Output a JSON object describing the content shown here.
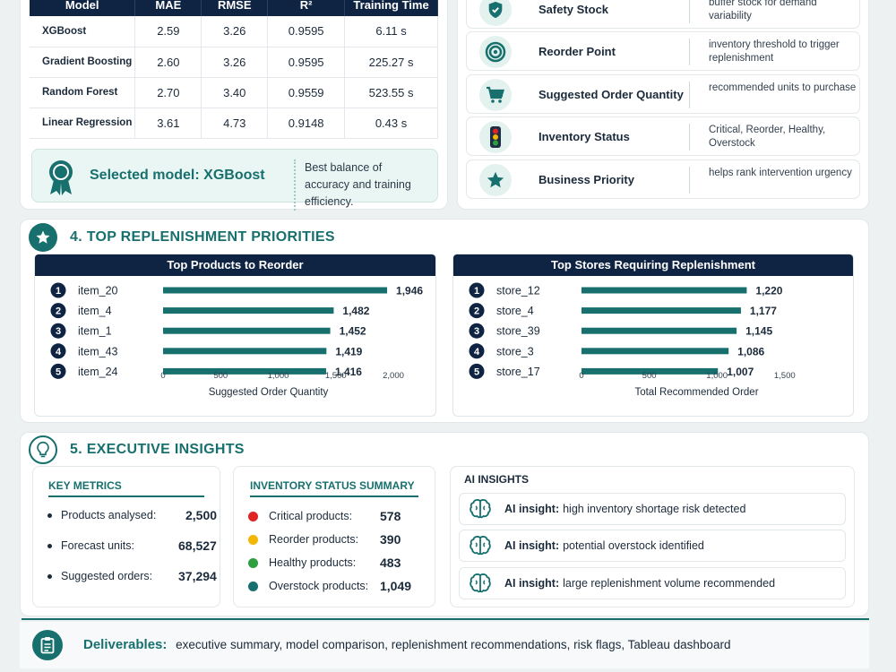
{
  "model_table": {
    "headers": [
      "Model",
      "MAE",
      "RMSE",
      "R²",
      "Training Time"
    ],
    "rows": [
      [
        "XGBoost",
        "2.59",
        "3.26",
        "0.9595",
        "6.11 s"
      ],
      [
        "Gradient Boosting",
        "2.60",
        "3.26",
        "0.9595",
        "225.27 s"
      ],
      [
        "Random Forest",
        "2.70",
        "3.40",
        "0.9559",
        "523.55 s"
      ],
      [
        "Linear Regression",
        "3.61",
        "4.73",
        "0.9148",
        "0.43 s"
      ]
    ]
  },
  "selected": {
    "title": "Selected model: XGBoost",
    "desc": "Best balance of accuracy and training efficiency."
  },
  "params": [
    {
      "icon": "shield-icon",
      "name": "Safety Stock",
      "desc": "buffer stock for demand variability"
    },
    {
      "icon": "target-icon",
      "name": "Reorder Point",
      "desc": "inventory threshold to trigger replenishment"
    },
    {
      "icon": "cart-icon",
      "name": "Suggested Order Quantity",
      "desc": "recommended units to purchase"
    },
    {
      "icon": "traffic-light-icon",
      "name": "Inventory Status",
      "desc": "Critical, Reorder, Healthy, Overstock"
    },
    {
      "icon": "star-icon",
      "name": "Business Priority",
      "desc": "helps rank intervention urgency"
    }
  ],
  "section4": {
    "title": "4. TOP REPLENISHMENT PRIORITIES"
  },
  "section5": {
    "title": "5. EXECUTIVE INSIGHTS"
  },
  "chart_data": [
    {
      "type": "bar",
      "title": "Top Products to Reorder",
      "categories": [
        "item_20",
        "item_4",
        "item_1",
        "item_43",
        "item_24"
      ],
      "values": [
        1946,
        1482,
        1452,
        1419,
        1416
      ],
      "value_labels": [
        "1,946",
        "1,482",
        "1,452",
        "1,419",
        "1,416"
      ],
      "xlabel": "Suggested Order Quantity",
      "xlim": [
        0,
        2000
      ],
      "ticks": [
        "0",
        "500",
        "1,000",
        "1,500",
        "2,000"
      ],
      "color": "#17706e"
    },
    {
      "type": "bar",
      "title": "Top Stores Requiring Replenishment",
      "categories": [
        "store_12",
        "store_4",
        "store_39",
        "store_3",
        "store_17"
      ],
      "values": [
        1220,
        1177,
        1145,
        1086,
        1007
      ],
      "value_labels": [
        "1,220",
        "1,177",
        "1,145",
        "1,086",
        "1,007"
      ],
      "xlabel": "Total Recommended Order",
      "xlim": [
        0,
        1700
      ],
      "ticks": [
        "0",
        "500",
        "1,000",
        "1,500"
      ],
      "color": "#17706e"
    }
  ],
  "key_metrics": {
    "title": "KEY METRICS",
    "items": [
      {
        "label": "Products analysed:",
        "value": "2,500"
      },
      {
        "label": "Forecast units:",
        "value": "68,527"
      },
      {
        "label": "Suggested orders:",
        "value": "37,294"
      }
    ]
  },
  "status_summary": {
    "title": "INVENTORY STATUS SUMMARY",
    "items": [
      {
        "label": "Critical products:",
        "value": "578",
        "color": "#e02424"
      },
      {
        "label": "Reorder products:",
        "value": "390",
        "color": "#f2b705"
      },
      {
        "label": "Healthy products:",
        "value": "483",
        "color": "#2e9e3f"
      },
      {
        "label": "Overstock products:",
        "value": "1,049",
        "color": "#17706e"
      }
    ]
  },
  "ai_insights": {
    "title": "AI INSIGHTS",
    "prefix": "AI insight:",
    "items": [
      "high inventory shortage risk detected",
      "potential overstock identified",
      "large replenishment volume recommended"
    ]
  },
  "deliverables": {
    "label": "Deliverables:",
    "text": "executive summary, model comparison, replenishment recommendations, risk flags, Tableau dashboard"
  }
}
